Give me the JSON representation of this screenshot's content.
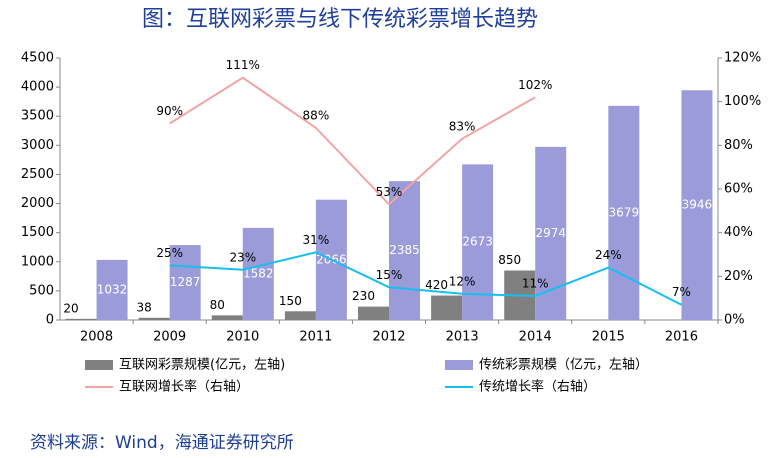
{
  "title": "图：互联网彩票与线下传统彩票增长趋势",
  "source": "资料来源：Wind，海通证券研究所",
  "chart_data": {
    "type": "bar",
    "categories": [
      "2008",
      "2009",
      "2010",
      "2011",
      "2012",
      "2013",
      "2014",
      "2015",
      "2016"
    ],
    "series": [
      {
        "name": "互联网彩票规模(亿元，左轴)",
        "type": "bar",
        "color": "#808080",
        "values": [
          20,
          38,
          80,
          150,
          230,
          420,
          850,
          null,
          null
        ]
      },
      {
        "name": "传统彩票规模（亿元，左轴）",
        "type": "bar",
        "color": "#9b9bd9",
        "values": [
          1032,
          1287,
          1582,
          2066,
          2385,
          2673,
          2974,
          3679,
          3946
        ]
      },
      {
        "name": "互联网增长率（右轴）",
        "type": "line",
        "axis": "y2",
        "color": "#f4a3a3",
        "values": [
          null,
          90,
          111,
          88,
          53,
          83,
          102,
          null,
          null
        ],
        "value_labels": [
          null,
          "90%",
          "111%",
          "88%",
          "53%",
          "83%",
          "102%",
          null,
          null
        ]
      },
      {
        "name": "传统增长率（右轴）",
        "type": "line",
        "axis": "y2",
        "color": "#17bfef",
        "values": [
          null,
          25,
          23,
          31,
          15,
          12,
          11,
          24,
          7
        ],
        "value_labels": [
          null,
          "25%",
          "23%",
          "31%",
          "15%",
          "12%",
          "11%",
          "24%",
          "7%"
        ]
      }
    ],
    "ylim": [
      0,
      4500
    ],
    "yticks": [
      0,
      500,
      1000,
      1500,
      2000,
      2500,
      3000,
      3500,
      4000,
      4500
    ],
    "y2lim": [
      0,
      120
    ],
    "y2ticks": [
      {
        "value": 0,
        "label": "0%"
      },
      {
        "value": 20,
        "label": "20%"
      },
      {
        "value": 40,
        "label": "40%"
      },
      {
        "value": 60,
        "label": "60%"
      },
      {
        "value": 80,
        "label": "80%"
      },
      {
        "value": 100,
        "label": "100%"
      },
      {
        "value": 120,
        "label": "120%"
      }
    ]
  }
}
